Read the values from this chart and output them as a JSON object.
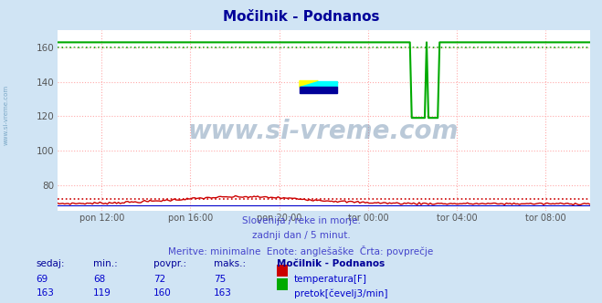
{
  "title": "Močilnik - Podnanos",
  "background_color": "#d0e4f4",
  "plot_background": "#ffffff",
  "grid_color": "#ffaaaa",
  "grid_style": ":",
  "ylim": [
    65,
    170
  ],
  "yticks": [
    80,
    100,
    120,
    140,
    160
  ],
  "xlabel_ticks": [
    "pon 12:00",
    "pon 16:00",
    "pon 20:00",
    "tor 00:00",
    "tor 04:00",
    "tor 08:00"
  ],
  "n_points": 288,
  "temp_color": "#cc0000",
  "flow_color": "#00aa00",
  "height_color": "#0000cc",
  "temp_avg": 72,
  "flow_avg": 160,
  "subtitle1": "Slovenija / reke in morje.",
  "subtitle2": "zadnji dan / 5 minut.",
  "subtitle3": "Meritve: minimalne  Enote: anglešaške  Črta: povprečje",
  "table_headers": [
    "sedaj:",
    "min.:",
    "povpr.:",
    "maks.:",
    "Močilnik - Podnanos"
  ],
  "row1": [
    "69",
    "68",
    "72",
    "75"
  ],
  "row1_label": "temperatura[F]",
  "row2": [
    "163",
    "119",
    "160",
    "163"
  ],
  "row2_label": "pretok[čevelj3/min]",
  "watermark": "www.si-vreme.com",
  "title_color": "#000099",
  "subtitle_color": "#4444cc",
  "table_header_color": "#000099",
  "table_val_color": "#0000cc",
  "side_label_color": "#6699bb",
  "logo_yellow": "#ffff00",
  "logo_cyan": "#00ffff",
  "logo_blue": "#000099"
}
